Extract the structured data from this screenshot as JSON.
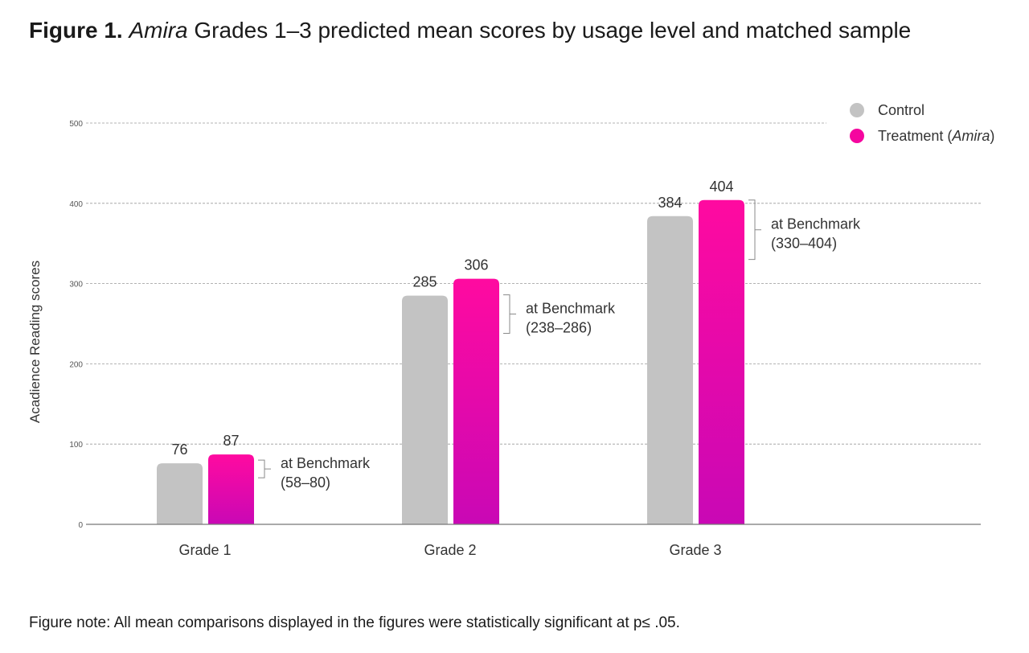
{
  "title": {
    "prefix": "Figure 1.",
    "italic": "Amira",
    "rest": "Grades 1–3 predicted mean scores by usage level and matched sample"
  },
  "note": "Figure note: All mean comparisons displayed in the figures were statistically significant at p≤ .05.",
  "legend": {
    "control": "Control",
    "treatment_prefix": "Treatment (",
    "treatment_italic": "Amira",
    "treatment_suffix": ")"
  },
  "chart_data": {
    "type": "bar",
    "title": "Amira Grades 1–3 predicted mean scores by usage level and matched sample",
    "ylabel": "Acadience Reading scores",
    "xlabel": "",
    "ylim": [
      0,
      500
    ],
    "yticks": [
      0,
      100,
      200,
      300,
      400,
      500
    ],
    "grid": true,
    "legend_position": "top-right",
    "categories": [
      "Grade 1",
      "Grade 2",
      "Grade 3"
    ],
    "series": [
      {
        "name": "Control",
        "color": "#c3c3c3",
        "values": [
          76,
          285,
          384
        ]
      },
      {
        "name": "Treatment (Amira)",
        "color": "#e60aa8",
        "values": [
          87,
          306,
          404
        ]
      }
    ],
    "benchmarks": [
      {
        "label": "at Benchmark",
        "range_text": "(58–80)",
        "range": [
          58,
          80
        ]
      },
      {
        "label": "at Benchmark",
        "range_text": "(238–286)",
        "range": [
          238,
          286
        ]
      },
      {
        "label": "at Benchmark",
        "range_text": "(330–404)",
        "range": [
          330,
          404
        ]
      }
    ]
  }
}
